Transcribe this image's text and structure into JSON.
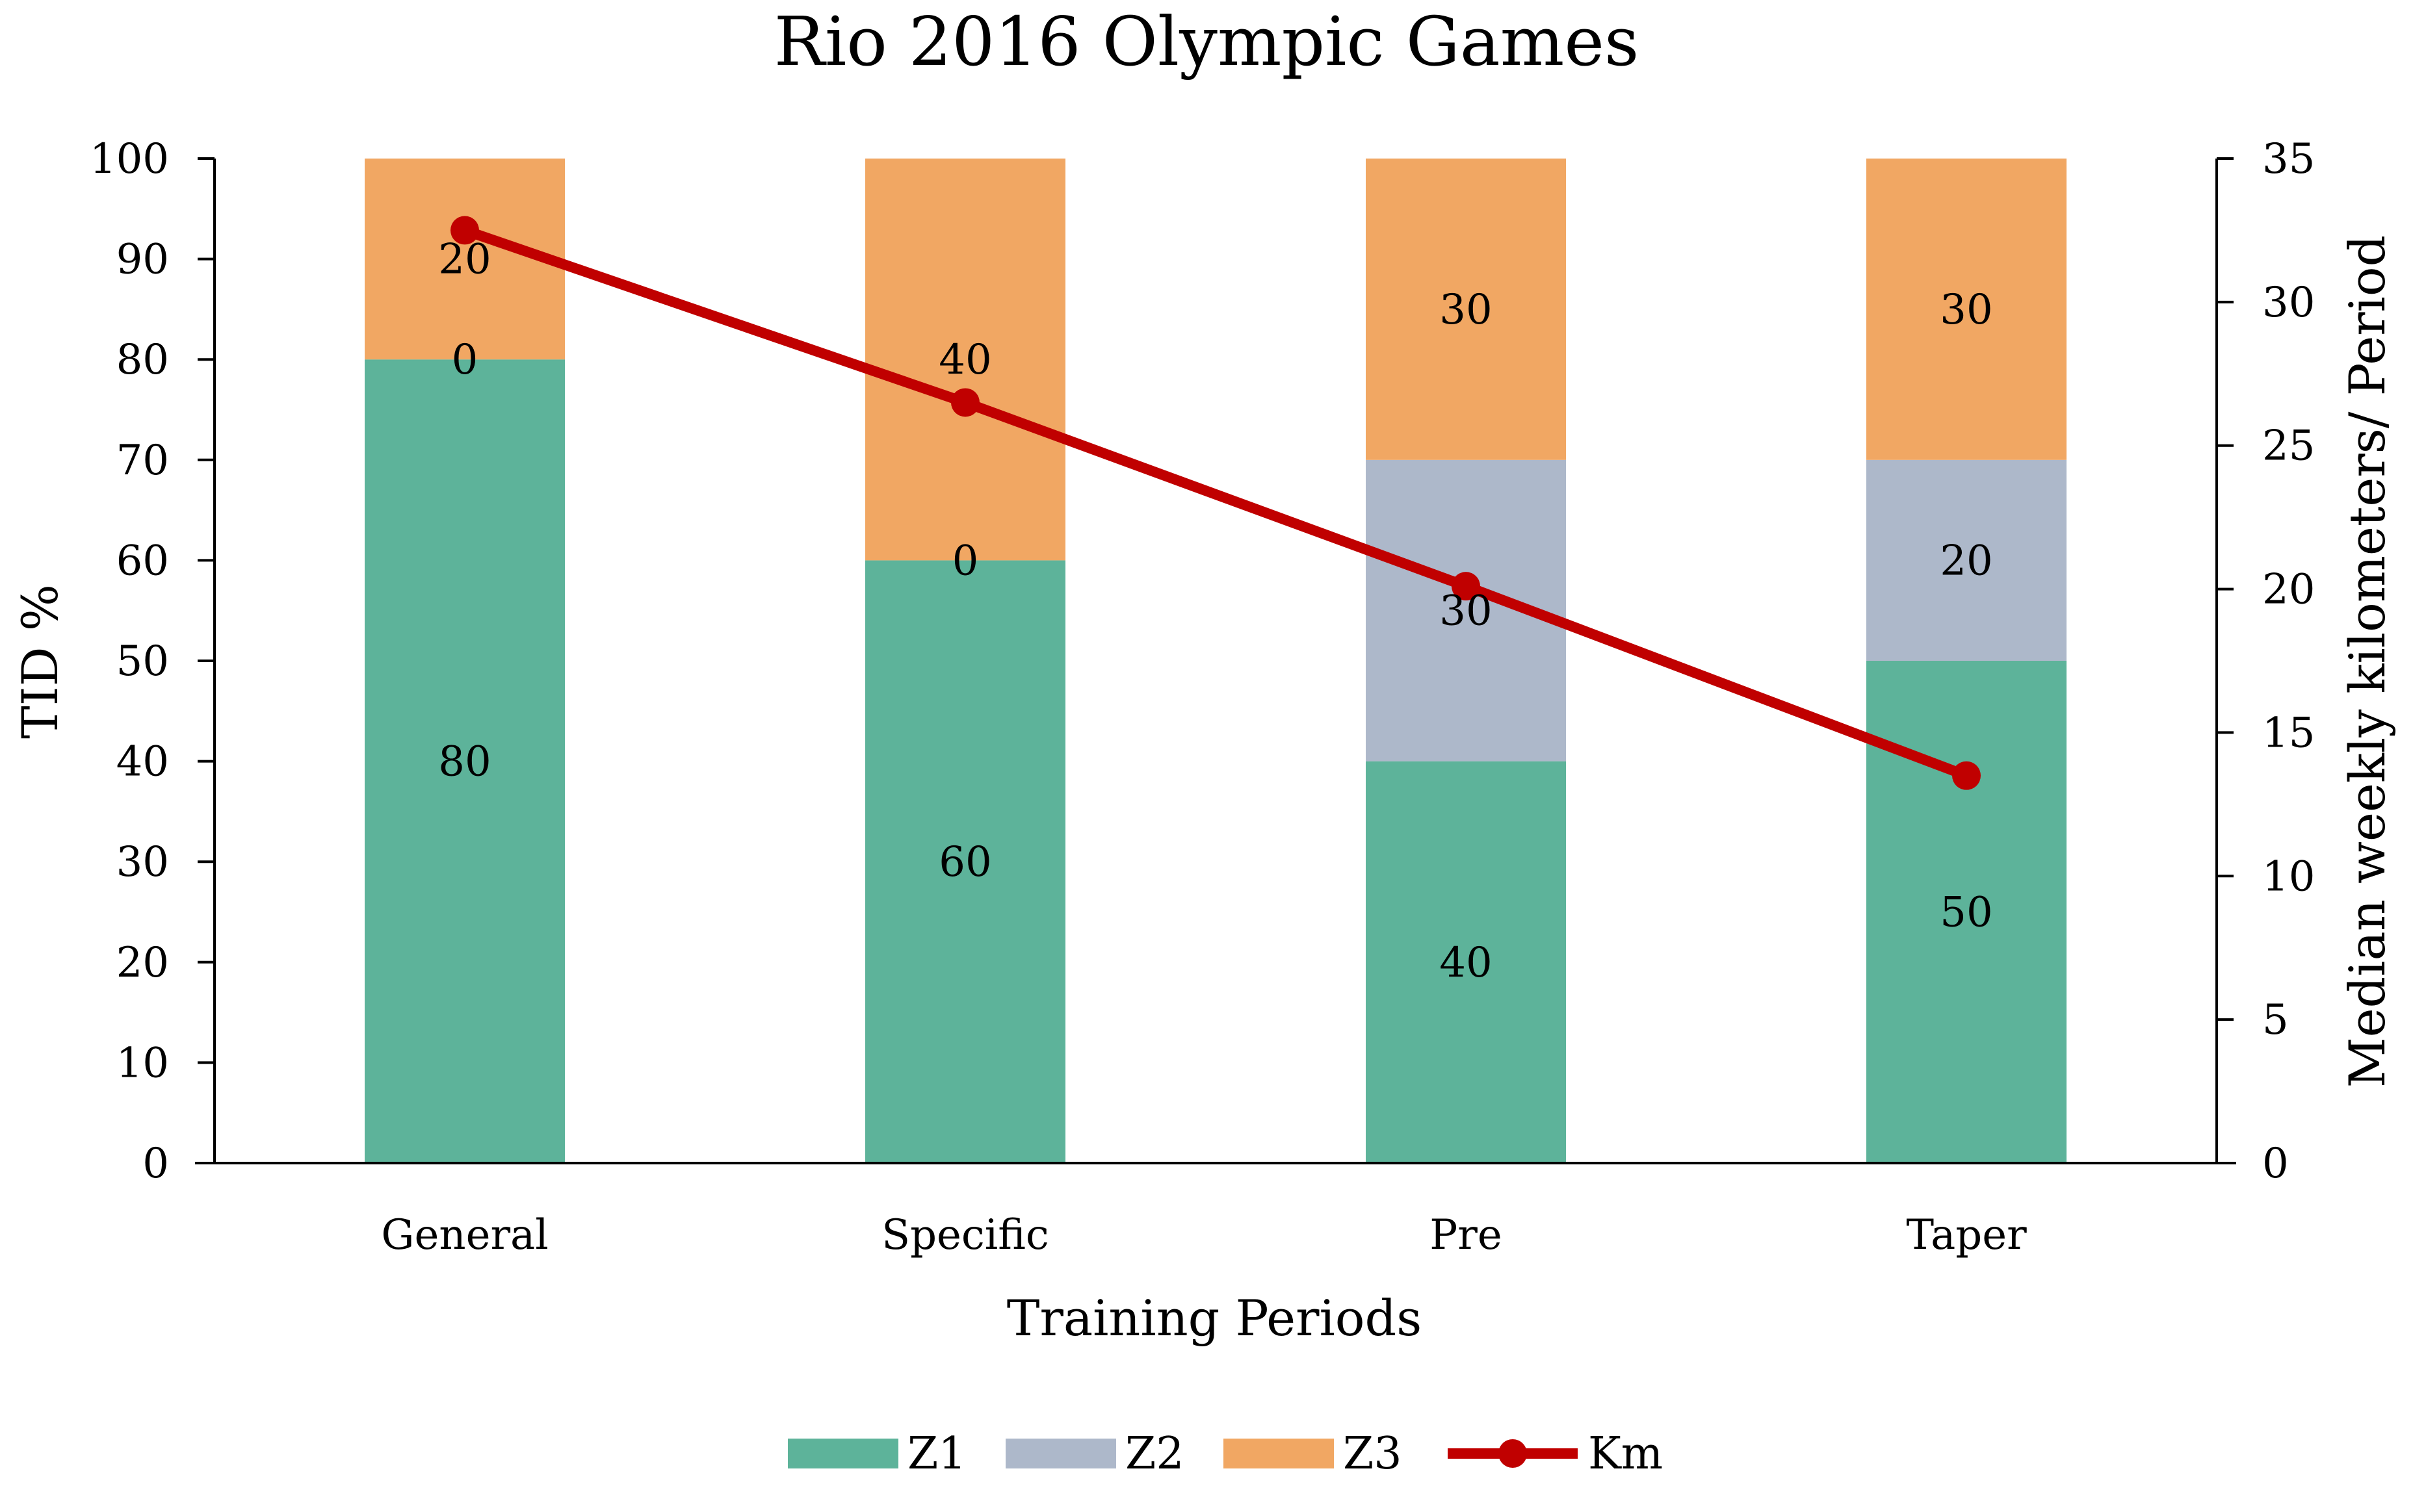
{
  "chart_data": {
    "type": "bar",
    "title": "Rio 2016 Olympic Games",
    "xlabel": "Training Periods",
    "ylabel": "TID  %",
    "y2label": "Median weekly kilometers/ Period",
    "categories": [
      "General",
      "Specific",
      "Pre",
      "Taper"
    ],
    "ylim": [
      0,
      100
    ],
    "y_ticks": [
      0,
      10,
      20,
      30,
      40,
      50,
      60,
      70,
      80,
      90,
      100
    ],
    "y2lim": [
      0,
      35
    ],
    "y2_ticks": [
      0,
      5,
      10,
      15,
      20,
      25,
      30,
      35
    ],
    "stacked": true,
    "series": [
      {
        "name": "Z1",
        "kind": "bar",
        "axis": "left",
        "color": "#5db39a",
        "values": [
          80,
          60,
          40,
          50
        ]
      },
      {
        "name": "Z2",
        "kind": "bar",
        "axis": "left",
        "color": "#adb8ca",
        "values": [
          0,
          0,
          30,
          20
        ]
      },
      {
        "name": "Z3",
        "kind": "bar",
        "axis": "left",
        "color": "#f1a763",
        "values": [
          20,
          40,
          30,
          30
        ]
      },
      {
        "name": "Km",
        "kind": "line",
        "axis": "right",
        "color": "#c00000",
        "values": [
          32.5,
          26.5,
          20.1,
          13.5
        ]
      }
    ],
    "legend": {
      "position": "bottom"
    },
    "grid": false
  }
}
